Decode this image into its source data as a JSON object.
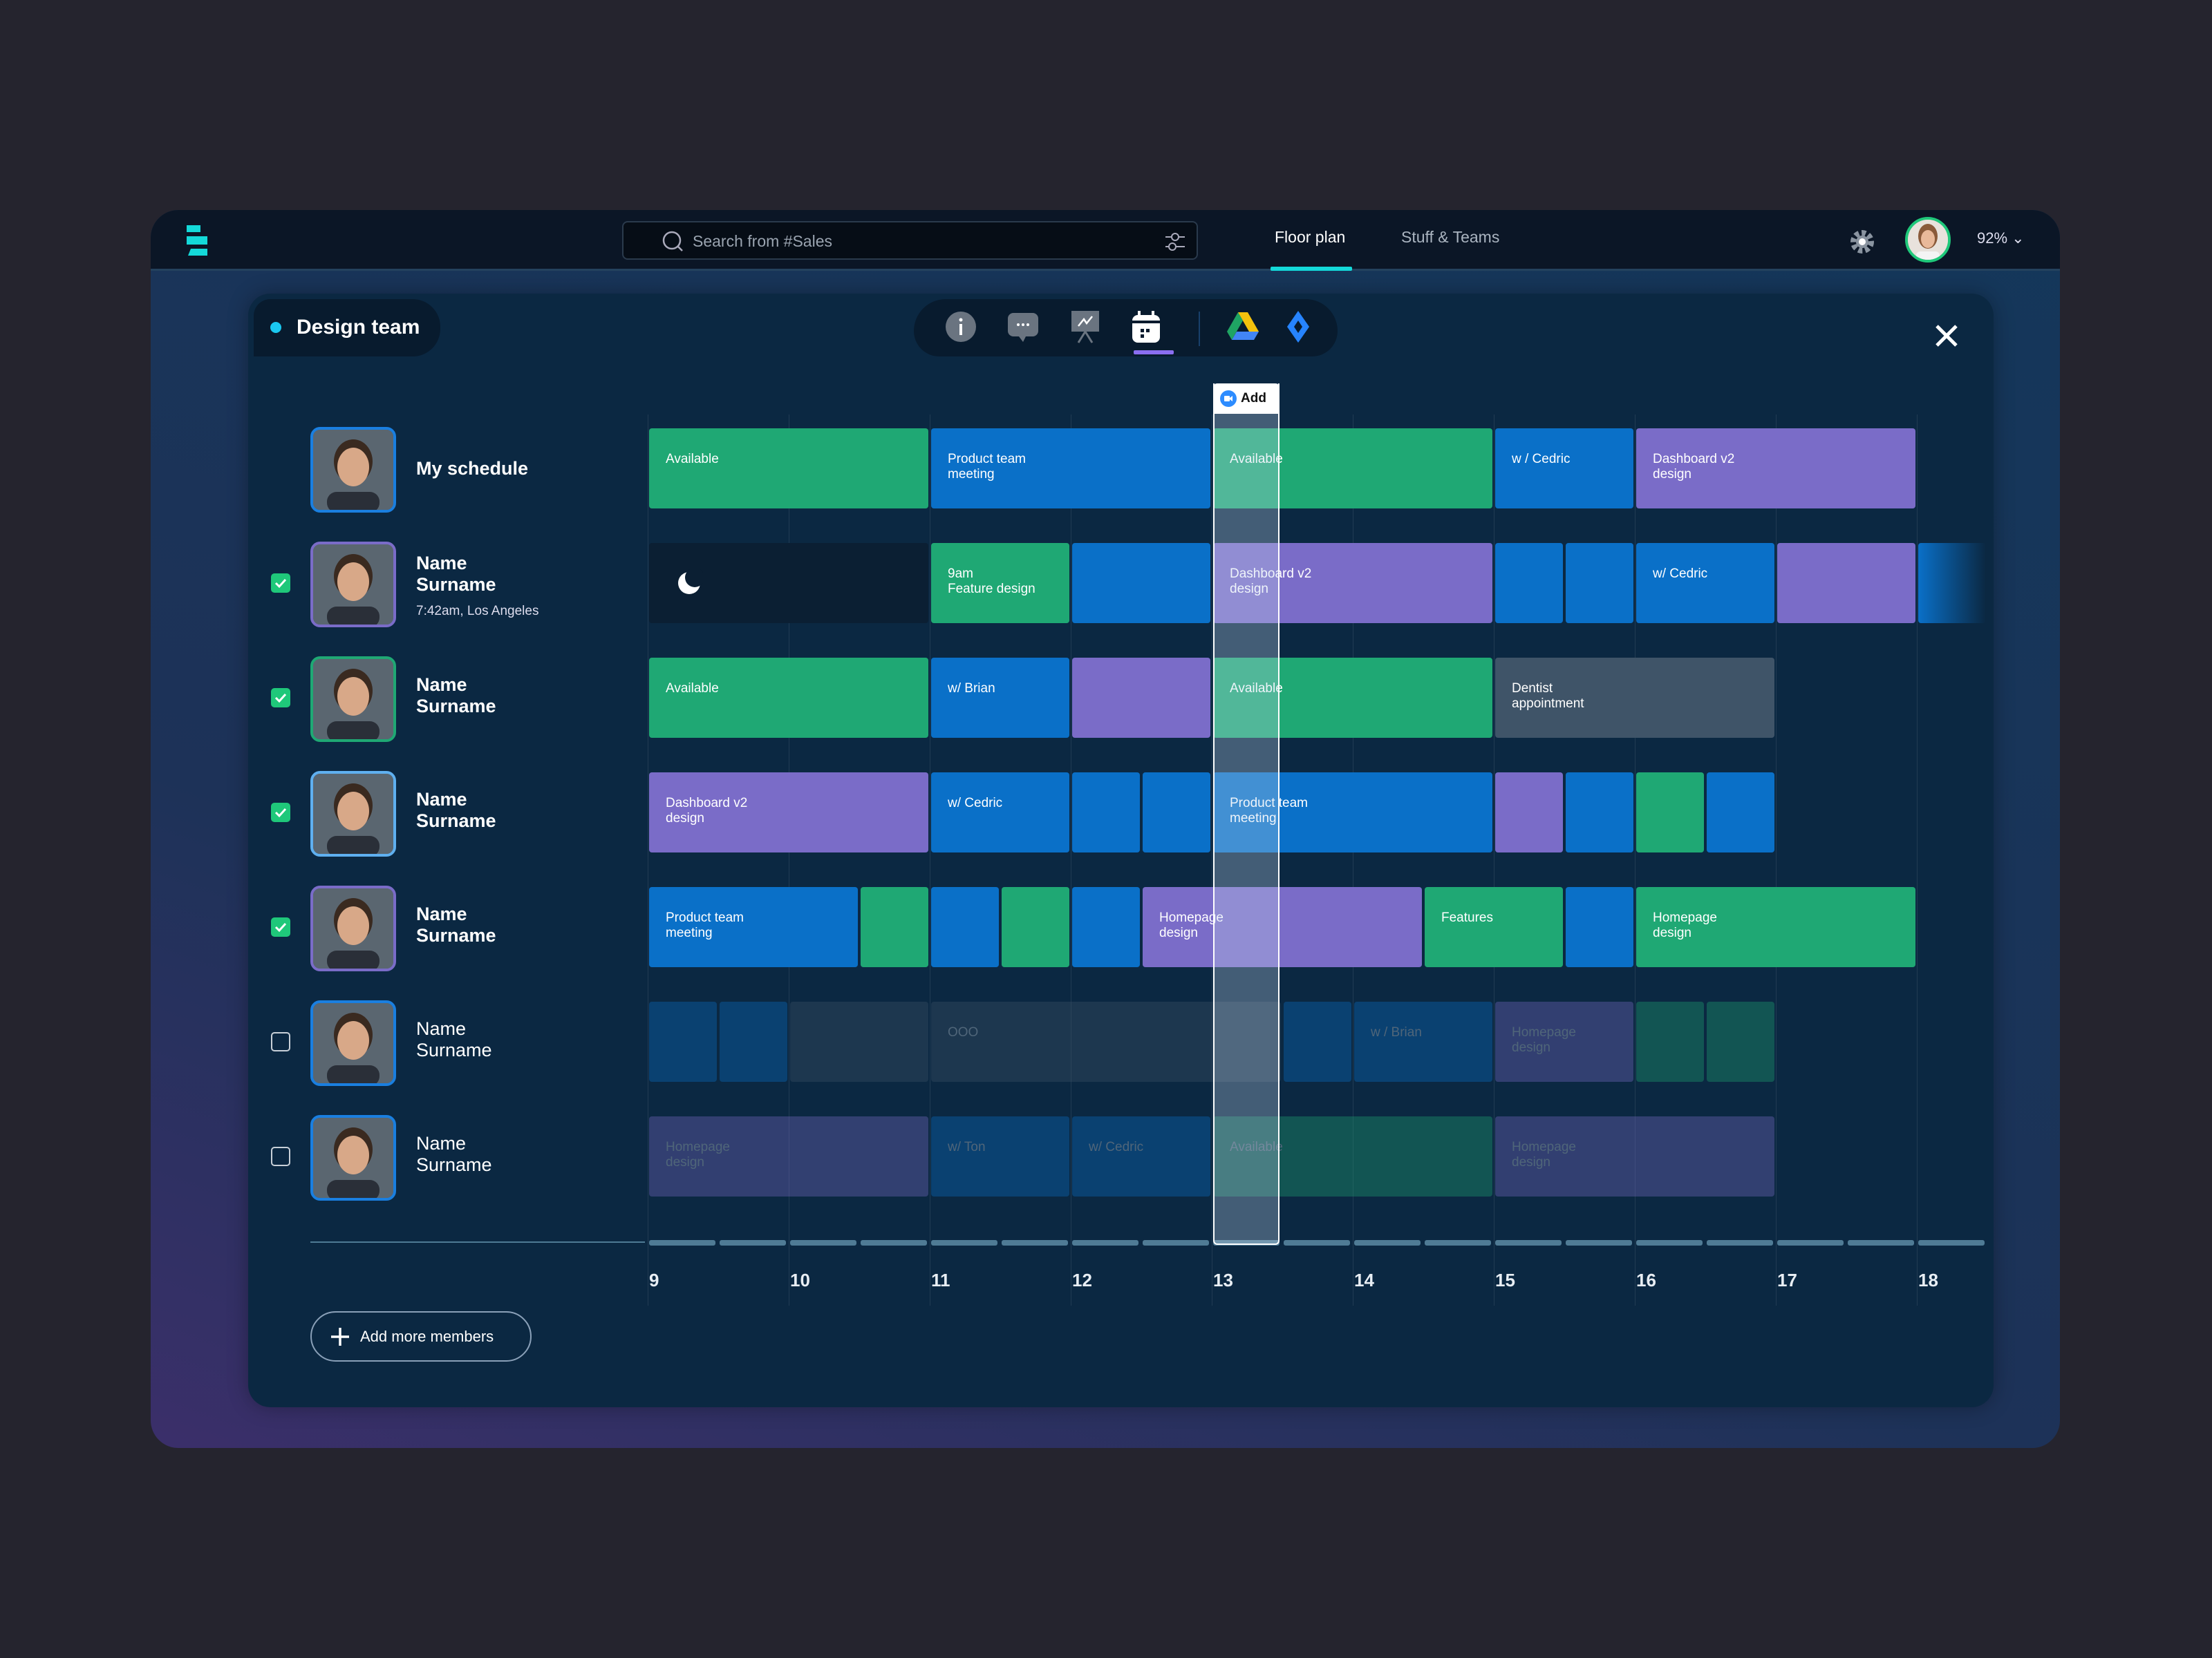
{
  "topbar": {
    "search_placeholder": "Search from #Sales",
    "tabs": [
      {
        "label": "Floor plan",
        "active": true
      },
      {
        "label": "Stuff & Teams",
        "active": false
      }
    ],
    "zoom": "92%"
  },
  "panel": {
    "team_name": "Design team",
    "toolbar_icons": [
      "info-icon",
      "chat-icon",
      "presentation-icon",
      "calendar-icon",
      "google-drive-icon",
      "jira-icon"
    ],
    "active_tool": "calendar-icon",
    "add_label": "Add",
    "add_members_label": "Add more members"
  },
  "colors": {
    "green": "#1fa874",
    "blue": "#0a70c8",
    "purple": "#7a6cc8",
    "gray": "#3f5468",
    "sleep": "#0b1f33",
    "accent": "#14d9d9"
  },
  "members": [
    {
      "name": "My schedule",
      "subtitle": "",
      "checked": null,
      "border": "#1a7fe0",
      "faded": false
    },
    {
      "name": "Name\nSurname",
      "subtitle": "7:42am, Los Angeles",
      "checked": true,
      "border": "#7a6cc8",
      "faded": false
    },
    {
      "name": "Name\nSurname",
      "subtitle": "",
      "checked": true,
      "border": "#1fa874",
      "faded": false
    },
    {
      "name": "Name\nSurname",
      "subtitle": "",
      "checked": true,
      "border": "#5fb0f0",
      "faded": false
    },
    {
      "name": "Name\nSurname",
      "subtitle": "",
      "checked": true,
      "border": "#7a6cc8",
      "faded": false
    },
    {
      "name": "Name\nSurname",
      "subtitle": "",
      "checked": false,
      "border": "#1a7fe0",
      "faded": true
    },
    {
      "name": "Name\nSurname",
      "subtitle": "",
      "checked": false,
      "border": "#1a7fe0",
      "faded": true
    }
  ],
  "hours": [
    "9",
    "10",
    "11",
    "12",
    "13",
    "14",
    "15",
    "16",
    "17",
    "18"
  ],
  "selected_slot": {
    "start": 13,
    "end": 13.5
  },
  "schedule": [
    [
      {
        "s": 9,
        "e": 11,
        "c": "green",
        "t": "Available"
      },
      {
        "s": 11,
        "e": 13,
        "c": "blue",
        "t": "Product team\nmeeting"
      },
      {
        "s": 13,
        "e": 15,
        "c": "green",
        "t": "Available"
      },
      {
        "s": 15,
        "e": 16,
        "c": "blue",
        "t": "w / Cedric"
      },
      {
        "s": 16,
        "e": 18,
        "c": "purple",
        "t": "Dashboard v2\ndesign"
      }
    ],
    [
      {
        "s": 9,
        "e": 11,
        "c": "sleep",
        "t": "",
        "icon": "moon-icon"
      },
      {
        "s": 11,
        "e": 12,
        "c": "green",
        "t": "9am\nFeature design"
      },
      {
        "s": 12,
        "e": 13,
        "c": "blue",
        "t": ""
      },
      {
        "s": 13,
        "e": 15,
        "c": "purple",
        "t": "Dashboard v2\ndesign"
      },
      {
        "s": 15,
        "e": 15.5,
        "c": "blue",
        "t": ""
      },
      {
        "s": 15.5,
        "e": 16,
        "c": "blue",
        "t": ""
      },
      {
        "s": 16,
        "e": 17,
        "c": "blue",
        "t": "w/ Cedric"
      },
      {
        "s": 17,
        "e": 18,
        "c": "purple",
        "t": ""
      },
      {
        "s": 18,
        "e": 18.5,
        "c": "blue",
        "t": ""
      }
    ],
    [
      {
        "s": 9,
        "e": 11,
        "c": "green",
        "t": "Available"
      },
      {
        "s": 11,
        "e": 12,
        "c": "blue",
        "t": "w/ Brian"
      },
      {
        "s": 12,
        "e": 13,
        "c": "purple",
        "t": ""
      },
      {
        "s": 13,
        "e": 15,
        "c": "green",
        "t": "Available"
      },
      {
        "s": 15,
        "e": 17,
        "c": "gray",
        "t": "Dentist\nappointment"
      }
    ],
    [
      {
        "s": 9,
        "e": 11,
        "c": "purple",
        "t": "Dashboard v2\ndesign"
      },
      {
        "s": 11,
        "e": 12,
        "c": "blue",
        "t": "w/ Cedric"
      },
      {
        "s": 12,
        "e": 12.5,
        "c": "blue",
        "t": ""
      },
      {
        "s": 12.5,
        "e": 13,
        "c": "blue",
        "t": ""
      },
      {
        "s": 13,
        "e": 15,
        "c": "blue",
        "t": "Product team\nmeeting"
      },
      {
        "s": 15,
        "e": 15.5,
        "c": "purple",
        "t": ""
      },
      {
        "s": 15.5,
        "e": 16,
        "c": "blue",
        "t": ""
      },
      {
        "s": 16,
        "e": 16.5,
        "c": "green",
        "t": ""
      },
      {
        "s": 16.5,
        "e": 17,
        "c": "blue",
        "t": ""
      }
    ],
    [
      {
        "s": 9,
        "e": 10.5,
        "c": "blue",
        "t": "Product team\nmeeting"
      },
      {
        "s": 10.5,
        "e": 11,
        "c": "green",
        "t": ""
      },
      {
        "s": 11,
        "e": 11.5,
        "c": "blue",
        "t": ""
      },
      {
        "s": 11.5,
        "e": 12,
        "c": "green",
        "t": ""
      },
      {
        "s": 12,
        "e": 12.5,
        "c": "blue",
        "t": ""
      },
      {
        "s": 12.5,
        "e": 14.5,
        "c": "purple",
        "t": "Homepage\ndesign"
      },
      {
        "s": 14.5,
        "e": 15.5,
        "c": "green",
        "t": "Features"
      },
      {
        "s": 15.5,
        "e": 16,
        "c": "blue",
        "t": ""
      },
      {
        "s": 16,
        "e": 18,
        "c": "green",
        "t": "Homepage\ndesign"
      }
    ],
    [
      {
        "s": 9,
        "e": 9.5,
        "c": "blue",
        "t": ""
      },
      {
        "s": 9.5,
        "e": 10,
        "c": "blue",
        "t": ""
      },
      {
        "s": 10,
        "e": 11,
        "c": "gray",
        "t": ""
      },
      {
        "s": 11,
        "e": 13.5,
        "c": "gray",
        "t": "OOO"
      },
      {
        "s": 13.5,
        "e": 14,
        "c": "blue",
        "t": ""
      },
      {
        "s": 14,
        "e": 15,
        "c": "blue",
        "t": "w / Brian"
      },
      {
        "s": 15,
        "e": 16,
        "c": "purple",
        "t": "Homepage\ndesign"
      },
      {
        "s": 16,
        "e": 16.5,
        "c": "green",
        "t": ""
      },
      {
        "s": 16.5,
        "e": 17,
        "c": "green",
        "t": ""
      }
    ],
    [
      {
        "s": 9,
        "e": 11,
        "c": "purple",
        "t": "Homepage\ndesign"
      },
      {
        "s": 11,
        "e": 12,
        "c": "blue",
        "t": "w/ Ton"
      },
      {
        "s": 12,
        "e": 13,
        "c": "blue",
        "t": "w/ Cedric"
      },
      {
        "s": 13,
        "e": 15,
        "c": "green",
        "t": "Available"
      },
      {
        "s": 15,
        "e": 17,
        "c": "purple",
        "t": "Homepage\ndesign"
      }
    ]
  ]
}
